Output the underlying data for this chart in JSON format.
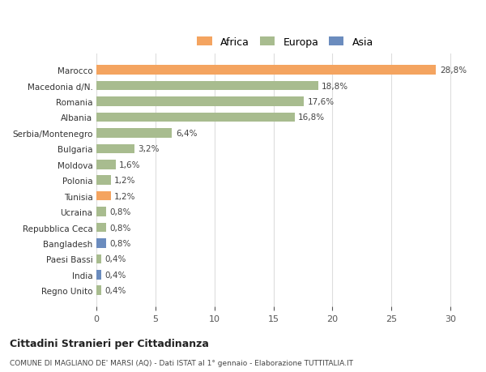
{
  "categories": [
    "Regno Unito",
    "India",
    "Paesi Bassi",
    "Bangladesh",
    "Repubblica Ceca",
    "Ucraina",
    "Tunisia",
    "Polonia",
    "Moldova",
    "Bulgaria",
    "Serbia/Montenegro",
    "Albania",
    "Romania",
    "Macedonia d/N.",
    "Marocco"
  ],
  "values": [
    0.4,
    0.4,
    0.4,
    0.8,
    0.8,
    0.8,
    1.2,
    1.2,
    1.6,
    3.2,
    6.4,
    16.8,
    17.6,
    18.8,
    28.8
  ],
  "labels": [
    "0,4%",
    "0,4%",
    "0,4%",
    "0,8%",
    "0,8%",
    "0,8%",
    "1,2%",
    "1,2%",
    "1,6%",
    "3,2%",
    "6,4%",
    "16,8%",
    "17,6%",
    "18,8%",
    "28,8%"
  ],
  "continents": [
    "Europa",
    "Asia",
    "Europa",
    "Asia",
    "Europa",
    "Europa",
    "Africa",
    "Europa",
    "Europa",
    "Europa",
    "Europa",
    "Europa",
    "Europa",
    "Europa",
    "Africa"
  ],
  "colors": {
    "Africa": "#F4A460",
    "Europa": "#A8BC8F",
    "Asia": "#6B8CBE"
  },
  "legend_order": [
    "Africa",
    "Europa",
    "Asia"
  ],
  "title": "Cittadini Stranieri per Cittadinanza",
  "subtitle": "COMUNE DI MAGLIANO DE' MARSI (AQ) - Dati ISTAT al 1° gennaio - Elaborazione TUTTITALIA.IT",
  "xlim": [
    0,
    32
  ],
  "xticks": [
    0,
    5,
    10,
    15,
    20,
    25,
    30
  ],
  "background_color": "#ffffff",
  "bar_height": 0.6,
  "grid_color": "#dddddd"
}
